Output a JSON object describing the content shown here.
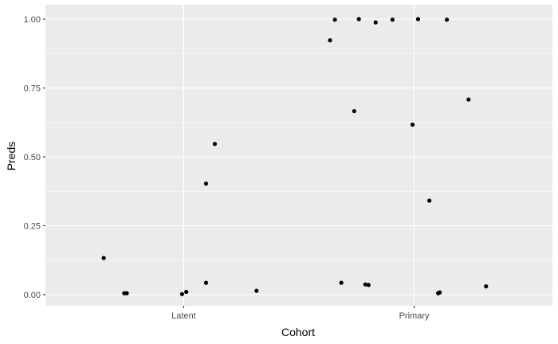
{
  "chart_data": {
    "type": "scatter",
    "title": "",
    "xlabel": "Cohort",
    "ylabel": "Preds",
    "categories": [
      "Latent",
      "Primary"
    ],
    "ylim": [
      0,
      1
    ],
    "y_ticks": [
      "0.00",
      "0.25",
      "0.50",
      "0.75",
      "1.00"
    ],
    "grid": true,
    "colors": {
      "panel": "#ebebeb",
      "grid": "#ffffff",
      "point": "#000000",
      "tick_text": "#4d4d4d",
      "tick_mark": "#333333"
    },
    "points": [
      {
        "cohort": "Latent",
        "x": 0.653,
        "y": 0.133
      },
      {
        "cohort": "Latent",
        "x": 0.742,
        "y": 0.005
      },
      {
        "cohort": "Latent",
        "x": 0.753,
        "y": 0.005
      },
      {
        "cohort": "Latent",
        "x": 0.993,
        "y": 0.002
      },
      {
        "cohort": "Latent",
        "x": 1.011,
        "y": 0.01
      },
      {
        "cohort": "Latent",
        "x": 1.097,
        "y": 0.043
      },
      {
        "cohort": "Latent",
        "x": 1.097,
        "y": 0.403
      },
      {
        "cohort": "Latent",
        "x": 1.135,
        "y": 0.547
      },
      {
        "cohort": "Latent",
        "x": 1.316,
        "y": 0.014
      },
      {
        "cohort": "Primary",
        "x": 1.635,
        "y": 0.923
      },
      {
        "cohort": "Primary",
        "x": 1.656,
        "y": 0.998
      },
      {
        "cohort": "Primary",
        "x": 1.684,
        "y": 0.043
      },
      {
        "cohort": "Primary",
        "x": 1.74,
        "y": 0.666
      },
      {
        "cohort": "Primary",
        "x": 1.76,
        "y": 1.0
      },
      {
        "cohort": "Primary",
        "x": 1.788,
        "y": 0.037
      },
      {
        "cohort": "Primary",
        "x": 1.802,
        "y": 0.035
      },
      {
        "cohort": "Primary",
        "x": 1.833,
        "y": 0.988
      },
      {
        "cohort": "Primary",
        "x": 1.906,
        "y": 0.998
      },
      {
        "cohort": "Primary",
        "x": 1.993,
        "y": 0.617
      },
      {
        "cohort": "Primary",
        "x": 2.017,
        "y": 1.0
      },
      {
        "cohort": "Primary",
        "x": 2.066,
        "y": 0.341
      },
      {
        "cohort": "Primary",
        "x": 2.104,
        "y": 0.005
      },
      {
        "cohort": "Primary",
        "x": 2.111,
        "y": 0.008
      },
      {
        "cohort": "Primary",
        "x": 2.142,
        "y": 0.998
      },
      {
        "cohort": "Primary",
        "x": 2.236,
        "y": 0.708
      },
      {
        "cohort": "Primary",
        "x": 2.312,
        "y": 0.03
      }
    ]
  }
}
